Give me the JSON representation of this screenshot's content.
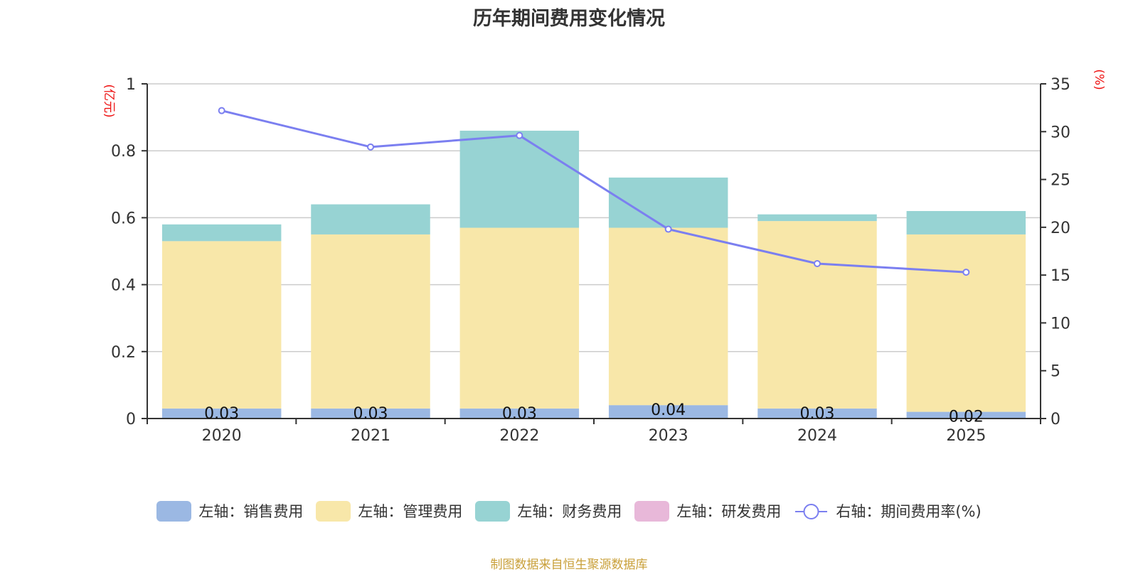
{
  "chart_data": {
    "type": "bar",
    "stacked": true,
    "title": "历年期间费用变化情况",
    "categories": [
      "2020",
      "2021",
      "2022",
      "2023",
      "2024",
      "2025"
    ],
    "left_axis": {
      "label": "(亿元)",
      "ylim": [
        0,
        1
      ],
      "ticks": [
        0,
        0.2,
        0.4,
        0.6,
        0.8,
        1
      ],
      "tick_labels": [
        "0",
        "0.2",
        "0.4",
        "0.6",
        "0.8",
        "1"
      ]
    },
    "right_axis": {
      "label": "(%)",
      "ylim": [
        0,
        35
      ],
      "ticks": [
        0,
        5,
        10,
        15,
        20,
        25,
        30,
        35
      ],
      "tick_labels": [
        "0",
        "5",
        "10",
        "15",
        "20",
        "25",
        "30",
        "35"
      ]
    },
    "grid": true,
    "legend_position": "bottom",
    "series": [
      {
        "name": "左轴：销售费用",
        "axis": "left",
        "kind": "bar",
        "color": "#9bb8e3",
        "values": [
          0.03,
          0.03,
          0.03,
          0.04,
          0.03,
          0.02
        ],
        "data_labels": [
          "0.03",
          "0.03",
          "0.03",
          "0.04",
          "0.03",
          "0.02"
        ]
      },
      {
        "name": "左轴：管理费用",
        "axis": "left",
        "kind": "bar",
        "color": "#f8e7a9",
        "values": [
          0.5,
          0.52,
          0.54,
          0.53,
          0.56,
          0.53
        ]
      },
      {
        "name": "左轴：财务费用",
        "axis": "left",
        "kind": "bar",
        "color": "#97d3d3",
        "values": [
          0.05,
          0.09,
          0.29,
          0.15,
          0.02,
          0.07
        ]
      },
      {
        "name": "左轴：研发费用",
        "axis": "left",
        "kind": "bar",
        "color": "#e8b8d9",
        "values": [
          0,
          0,
          0,
          0,
          0,
          0
        ]
      },
      {
        "name": "右轴：期间费用率(%)",
        "axis": "right",
        "kind": "line",
        "color": "#7b7ff0",
        "values": [
          32.2,
          28.4,
          29.6,
          19.8,
          16.2,
          15.3
        ]
      }
    ]
  },
  "footer": "制图数据来自恒生聚源数据库"
}
